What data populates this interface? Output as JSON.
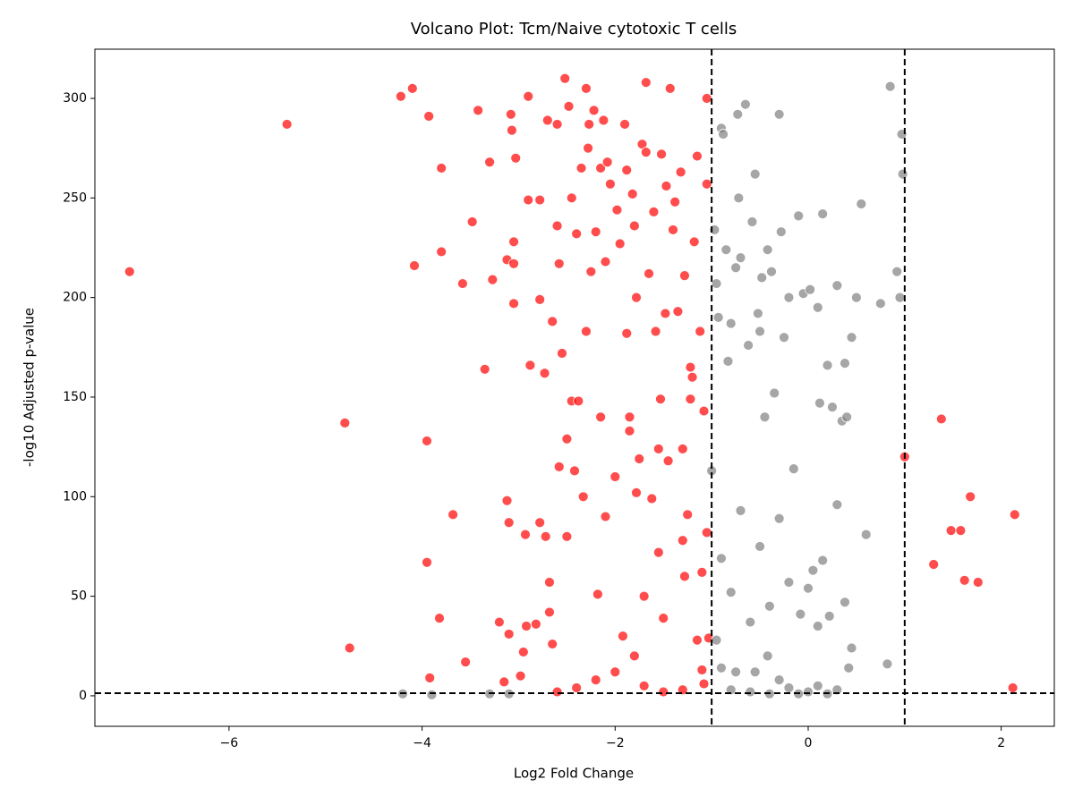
{
  "chart_data": {
    "type": "scatter",
    "title": "Volcano Plot: Tcm/Naive cytotoxic T cells",
    "x_label": "Log2 Fold Change",
    "y_label": "-log10 Adjusted p-value",
    "xlim": [
      -7.39,
      2.55
    ],
    "ylim": [
      -15.3,
      324.7
    ],
    "xticks": [
      {
        "value": -6,
        "label": "−6"
      },
      {
        "value": -4,
        "label": "−4"
      },
      {
        "value": -2,
        "label": "−2"
      },
      0,
      2
    ],
    "yticks": [
      0,
      50,
      100,
      150,
      200,
      250,
      300
    ],
    "vlines": [
      -1,
      1
    ],
    "hline": 1.3,
    "threshold_color": "#000000",
    "series": [
      {
        "color": "#ff0000",
        "x": [
          -7.03,
          -5.4,
          -4.8,
          -4.75,
          -4.22,
          -4.1,
          -4.08,
          -3.95,
          -3.95,
          -3.93,
          -3.92,
          -3.82,
          -3.8,
          -3.8,
          -3.68,
          -3.58,
          -3.55,
          -3.48,
          -3.42,
          -3.35,
          -3.3,
          -3.27,
          -3.2,
          -3.15,
          -3.12,
          -3.12,
          -3.1,
          -3.1,
          -3.08,
          -3.07,
          -3.05,
          -3.05,
          -3.05,
          -3.03,
          -2.98,
          -2.95,
          -2.93,
          -2.92,
          -2.9,
          -2.9,
          -2.88,
          -2.82,
          -2.78,
          -2.78,
          -2.78,
          -2.73,
          -2.72,
          -2.7,
          -2.68,
          -2.68,
          -2.65,
          -2.65,
          -2.6,
          -2.6,
          -2.58,
          -2.58,
          -2.55,
          -2.52,
          -2.5,
          -2.5,
          -2.48,
          -2.45,
          -2.45,
          -2.42,
          -2.4,
          -2.38,
          -2.35,
          -2.33,
          -2.3,
          -2.3,
          -2.28,
          -2.27,
          -2.25,
          -2.22,
          -2.2,
          -2.18,
          -2.15,
          -2.15,
          -2.12,
          -2.1,
          -2.1,
          -2.08,
          -2.05,
          -2.0,
          -1.98,
          -1.95,
          -1.92,
          -1.9,
          -1.88,
          -1.88,
          -1.85,
          -1.85,
          -1.82,
          -1.8,
          -1.78,
          -1.78,
          -1.75,
          -1.72,
          -1.7,
          -1.68,
          -1.68,
          -1.65,
          -1.62,
          -1.6,
          -1.58,
          -1.55,
          -1.55,
          -1.53,
          -1.52,
          -1.5,
          -1.48,
          -1.47,
          -1.45,
          -1.43,
          -1.4,
          -1.38,
          -1.35,
          -1.32,
          -1.3,
          -1.3,
          -1.28,
          -1.28,
          -1.25,
          -1.22,
          -1.22,
          -1.2,
          -1.18,
          -1.15,
          -1.15,
          -1.12,
          -1.1,
          -1.08,
          -1.05,
          -1.05,
          -1.03,
          -1.05,
          -1.08,
          -1.1,
          -1.5,
          -1.7,
          -2.0,
          -2.4,
          -2.6,
          -1.3,
          -1.8,
          -2.2,
          1.0,
          1.3,
          1.38,
          1.48,
          1.58,
          1.62,
          1.68,
          1.76,
          2.12,
          2.14
        ],
        "y": [
          213,
          287,
          137,
          24,
          301,
          305,
          216,
          128,
          67,
          291,
          9,
          39,
          223,
          265,
          91,
          207,
          17,
          238,
          294,
          164,
          268,
          209,
          37,
          7,
          219,
          98,
          87,
          31,
          292,
          284,
          217,
          197,
          228,
          270,
          10,
          22,
          81,
          35,
          249,
          301,
          166,
          36,
          87,
          249,
          199,
          162,
          80,
          289,
          42,
          57,
          26,
          188,
          287,
          236,
          217,
          115,
          172,
          310,
          80,
          129,
          296,
          148,
          250,
          113,
          232,
          148,
          265,
          100,
          305,
          183,
          275,
          287,
          213,
          294,
          233,
          51,
          140,
          265,
          289,
          218,
          90,
          268,
          257,
          110,
          244,
          227,
          30,
          287,
          182,
          264,
          140,
          133,
          252,
          236,
          102,
          200,
          119,
          277,
          50,
          308,
          273,
          212,
          99,
          243,
          183,
          72,
          124,
          149,
          272,
          39,
          192,
          256,
          118,
          305,
          234,
          248,
          193,
          263,
          124,
          78,
          211,
          60,
          91,
          149,
          165,
          160,
          228,
          28,
          271,
          183,
          62,
          143,
          300,
          257,
          29,
          82,
          6,
          13,
          2,
          5,
          12,
          4,
          2,
          3,
          20,
          8,
          120,
          66,
          139,
          83,
          83,
          58,
          100,
          57,
          4,
          91
        ]
      },
      {
        "color": "#808080",
        "x": [
          -4.2,
          -3.9,
          -3.3,
          -3.1,
          -1.0,
          -0.97,
          -0.95,
          -0.93,
          -0.9,
          -0.88,
          -0.85,
          -0.83,
          -0.8,
          -0.75,
          -0.73,
          -0.72,
          -0.7,
          -0.65,
          -0.62,
          -0.58,
          -0.55,
          -0.52,
          -0.5,
          -0.48,
          -0.45,
          -0.42,
          -0.38,
          -0.35,
          -0.3,
          -0.28,
          -0.25,
          -0.2,
          -0.15,
          -0.1,
          -0.05,
          0.02,
          0.1,
          0.12,
          0.15,
          0.2,
          0.25,
          0.3,
          0.35,
          0.38,
          0.4,
          0.45,
          0.5,
          0.55,
          0.6,
          0.75,
          0.85,
          0.92,
          0.95,
          0.97,
          0.98,
          0.82,
          0.45,
          0.42,
          0.3,
          0.15,
          0.1,
          0.0,
          -0.2,
          -0.4,
          -0.5,
          -0.6,
          -0.7,
          -0.8,
          -0.9,
          -0.95,
          -0.9,
          -0.75,
          -0.55,
          -0.3,
          -0.2,
          0.0,
          0.1,
          0.2,
          0.3,
          -0.1,
          -0.4,
          -0.6,
          -0.8,
          0.05,
          -0.3,
          0.38,
          0.22,
          -0.08,
          -0.42
        ],
        "y": [
          1,
          0.5,
          1,
          1,
          113,
          234,
          207,
          190,
          285,
          282,
          224,
          168,
          187,
          215,
          292,
          250,
          220,
          297,
          176,
          238,
          262,
          192,
          183,
          210,
          140,
          224,
          213,
          152,
          292,
          233,
          180,
          200,
          114,
          241,
          202,
          204,
          195,
          147,
          242,
          166,
          145,
          206,
          138,
          167,
          140,
          180,
          200,
          247,
          81,
          197,
          306,
          213,
          200,
          282,
          262,
          16,
          24,
          14,
          96,
          68,
          35,
          54,
          57,
          45,
          75,
          37,
          93,
          52,
          69,
          28,
          14,
          12,
          12,
          8,
          4,
          2,
          5,
          1,
          3,
          1,
          1,
          2,
          3,
          63,
          89,
          47,
          40,
          41,
          20
        ]
      }
    ]
  }
}
